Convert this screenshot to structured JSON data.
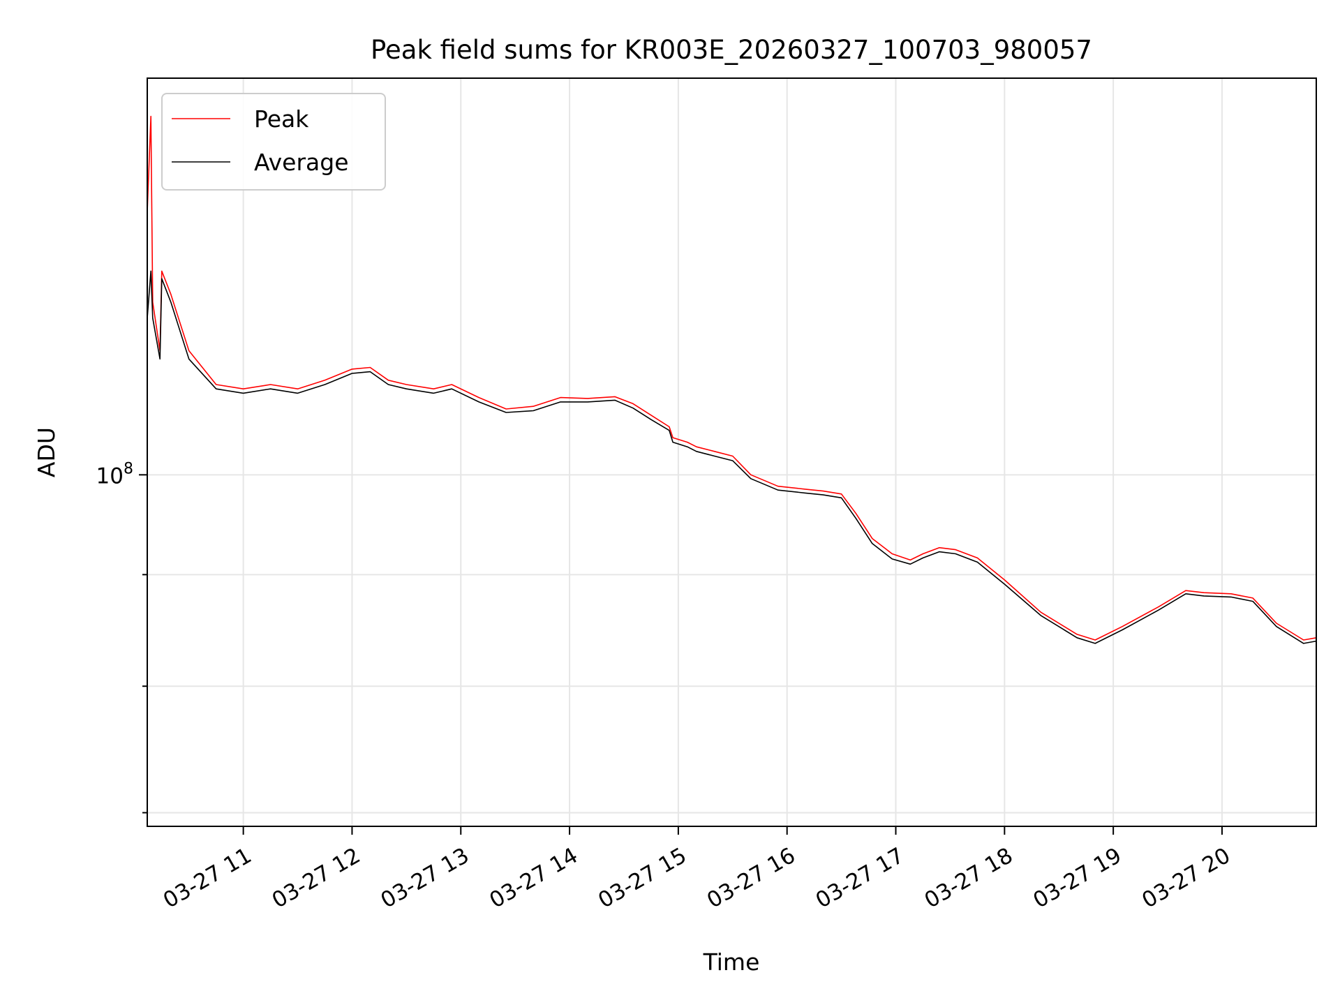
{
  "chart_data": {
    "type": "line",
    "title": "Peak field sums for KR003E_20260327_100703_980057",
    "xlabel": "Time",
    "ylabel": "ADU",
    "x_scale": "time",
    "y_scale": "log",
    "xlim": [
      "2026-03-27 10:07",
      "2026-03-27 20:52"
    ],
    "ylim": [
      69000000,
      152000000
    ],
    "x_ticks": [
      {
        "value": "2026-03-27 11:00",
        "label": "03-27 11"
      },
      {
        "value": "2026-03-27 12:00",
        "label": "03-27 12"
      },
      {
        "value": "2026-03-27 13:00",
        "label": "03-27 13"
      },
      {
        "value": "2026-03-27 14:00",
        "label": "03-27 14"
      },
      {
        "value": "2026-03-27 15:00",
        "label": "03-27 15"
      },
      {
        "value": "2026-03-27 16:00",
        "label": "03-27 16"
      },
      {
        "value": "2026-03-27 17:00",
        "label": "03-27 17"
      },
      {
        "value": "2026-03-27 18:00",
        "label": "03-27 18"
      },
      {
        "value": "2026-03-27 19:00",
        "label": "03-27 19"
      },
      {
        "value": "2026-03-27 20:00",
        "label": "03-27 20"
      }
    ],
    "y_ticks_major": [
      {
        "value": 100000000,
        "label_base": "10",
        "label_exp": "8"
      }
    ],
    "y_ticks_minor": [
      70000000,
      80000000,
      90000000
    ],
    "grid": true,
    "legend": {
      "placement": "top-left",
      "entries": [
        "Peak",
        "Average"
      ]
    },
    "series": [
      {
        "name": "Peak",
        "color": "#ff0000",
        "points": [
          [
            "2026-03-27 10:07",
            132000000
          ],
          [
            "2026-03-27 10:09",
            146000000
          ],
          [
            "2026-03-27 10:10",
            120000000
          ],
          [
            "2026-03-27 10:14",
            114000000
          ],
          [
            "2026-03-27 10:15",
            124000000
          ],
          [
            "2026-03-27 10:20",
            121000000
          ],
          [
            "2026-03-27 10:30",
            114000000
          ],
          [
            "2026-03-27 10:45",
            110000000
          ],
          [
            "2026-03-27 11:00",
            109500000
          ],
          [
            "2026-03-27 11:15",
            110000000
          ],
          [
            "2026-03-27 11:30",
            109500000
          ],
          [
            "2026-03-27 11:45",
            110500000
          ],
          [
            "2026-03-27 12:00",
            111800000
          ],
          [
            "2026-03-27 12:10",
            112000000
          ],
          [
            "2026-03-27 12:20",
            110500000
          ],
          [
            "2026-03-27 12:30",
            110000000
          ],
          [
            "2026-03-27 12:45",
            109500000
          ],
          [
            "2026-03-27 12:55",
            110000000
          ],
          [
            "2026-03-27 13:10",
            108500000
          ],
          [
            "2026-03-27 13:25",
            107200000
          ],
          [
            "2026-03-27 13:40",
            107500000
          ],
          [
            "2026-03-27 13:55",
            108500000
          ],
          [
            "2026-03-27 14:10",
            108400000
          ],
          [
            "2026-03-27 14:25",
            108600000
          ],
          [
            "2026-03-27 14:35",
            107800000
          ],
          [
            "2026-03-27 14:45",
            106500000
          ],
          [
            "2026-03-27 14:55",
            105200000
          ],
          [
            "2026-03-27 14:57",
            104000000
          ],
          [
            "2026-03-27 15:05",
            103500000
          ],
          [
            "2026-03-27 15:10",
            103000000
          ],
          [
            "2026-03-27 15:20",
            102500000
          ],
          [
            "2026-03-27 15:30",
            102000000
          ],
          [
            "2026-03-27 15:40",
            100000000
          ],
          [
            "2026-03-27 15:55",
            98800000
          ],
          [
            "2026-03-27 16:10",
            98500000
          ],
          [
            "2026-03-27 16:20",
            98300000
          ],
          [
            "2026-03-27 16:30",
            98000000
          ],
          [
            "2026-03-27 16:38",
            96000000
          ],
          [
            "2026-03-27 16:47",
            93500000
          ],
          [
            "2026-03-27 16:58",
            92000000
          ],
          [
            "2026-03-27 17:08",
            91400000
          ],
          [
            "2026-03-27 17:15",
            92000000
          ],
          [
            "2026-03-27 17:24",
            92600000
          ],
          [
            "2026-03-27 17:33",
            92400000
          ],
          [
            "2026-03-27 17:45",
            91600000
          ],
          [
            "2026-03-27 18:00",
            89500000
          ],
          [
            "2026-03-27 18:20",
            86500000
          ],
          [
            "2026-03-27 18:40",
            84500000
          ],
          [
            "2026-03-27 18:50",
            84000000
          ],
          [
            "2026-03-27 19:05",
            85200000
          ],
          [
            "2026-03-27 19:25",
            87000000
          ],
          [
            "2026-03-27 19:40",
            88500000
          ],
          [
            "2026-03-27 19:50",
            88300000
          ],
          [
            "2026-03-27 20:05",
            88200000
          ],
          [
            "2026-03-27 20:17",
            87800000
          ],
          [
            "2026-03-27 20:30",
            85500000
          ],
          [
            "2026-03-27 20:45",
            84000000
          ],
          [
            "2026-03-27 20:52",
            84200000
          ]
        ]
      },
      {
        "name": "Average",
        "color": "#000000",
        "points": [
          [
            "2026-03-27 10:07",
            118000000
          ],
          [
            "2026-03-27 10:09",
            124000000
          ],
          [
            "2026-03-27 10:10",
            118000000
          ],
          [
            "2026-03-27 10:14",
            113000000
          ],
          [
            "2026-03-27 10:15",
            123000000
          ],
          [
            "2026-03-27 10:20",
            120000000
          ],
          [
            "2026-03-27 10:30",
            113000000
          ],
          [
            "2026-03-27 10:45",
            109500000
          ],
          [
            "2026-03-27 11:00",
            109000000
          ],
          [
            "2026-03-27 11:15",
            109500000
          ],
          [
            "2026-03-27 11:30",
            109000000
          ],
          [
            "2026-03-27 11:45",
            110000000
          ],
          [
            "2026-03-27 12:00",
            111300000
          ],
          [
            "2026-03-27 12:10",
            111500000
          ],
          [
            "2026-03-27 12:20",
            110000000
          ],
          [
            "2026-03-27 12:30",
            109500000
          ],
          [
            "2026-03-27 12:45",
            109000000
          ],
          [
            "2026-03-27 12:55",
            109500000
          ],
          [
            "2026-03-27 13:10",
            108000000
          ],
          [
            "2026-03-27 13:25",
            106800000
          ],
          [
            "2026-03-27 13:40",
            107000000
          ],
          [
            "2026-03-27 13:55",
            108000000
          ],
          [
            "2026-03-27 14:10",
            108000000
          ],
          [
            "2026-03-27 14:25",
            108200000
          ],
          [
            "2026-03-27 14:35",
            107300000
          ],
          [
            "2026-03-27 14:45",
            106000000
          ],
          [
            "2026-03-27 14:55",
            104800000
          ],
          [
            "2026-03-27 14:57",
            103500000
          ],
          [
            "2026-03-27 15:05",
            103000000
          ],
          [
            "2026-03-27 15:10",
            102500000
          ],
          [
            "2026-03-27 15:20",
            102000000
          ],
          [
            "2026-03-27 15:30",
            101500000
          ],
          [
            "2026-03-27 15:40",
            99600000
          ],
          [
            "2026-03-27 15:55",
            98400000
          ],
          [
            "2026-03-27 16:10",
            98100000
          ],
          [
            "2026-03-27 16:20",
            97900000
          ],
          [
            "2026-03-27 16:30",
            97600000
          ],
          [
            "2026-03-27 16:38",
            95500000
          ],
          [
            "2026-03-27 16:47",
            93000000
          ],
          [
            "2026-03-27 16:58",
            91500000
          ],
          [
            "2026-03-27 17:08",
            91000000
          ],
          [
            "2026-03-27 17:15",
            91600000
          ],
          [
            "2026-03-27 17:24",
            92200000
          ],
          [
            "2026-03-27 17:33",
            92000000
          ],
          [
            "2026-03-27 17:45",
            91200000
          ],
          [
            "2026-03-27 18:00",
            89100000
          ],
          [
            "2026-03-27 18:20",
            86200000
          ],
          [
            "2026-03-27 18:40",
            84200000
          ],
          [
            "2026-03-27 18:50",
            83700000
          ],
          [
            "2026-03-27 19:05",
            84900000
          ],
          [
            "2026-03-27 19:25",
            86700000
          ],
          [
            "2026-03-27 19:40",
            88200000
          ],
          [
            "2026-03-27 19:50",
            88000000
          ],
          [
            "2026-03-27 20:05",
            87900000
          ],
          [
            "2026-03-27 20:17",
            87500000
          ],
          [
            "2026-03-27 20:30",
            85200000
          ],
          [
            "2026-03-27 20:45",
            83700000
          ],
          [
            "2026-03-27 20:52",
            83900000
          ]
        ]
      }
    ]
  }
}
